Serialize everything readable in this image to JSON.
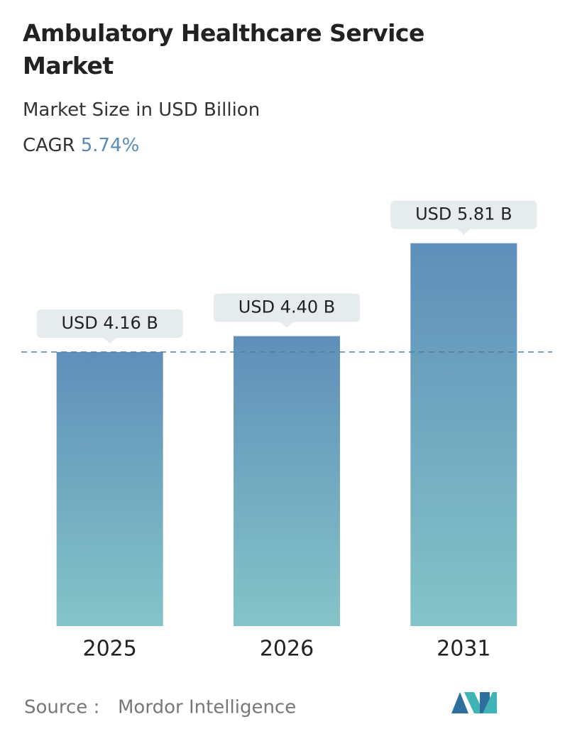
{
  "chart_data": {
    "type": "bar",
    "title": "Ambulatory Healthcare Service Market",
    "subtitle": "Market Size in USD Billion",
    "cagr_label": "CAGR",
    "cagr": "5.74%",
    "categories": [
      "2025",
      "2026",
      "2031"
    ],
    "values": [
      4.16,
      4.4,
      5.81
    ],
    "value_labels": [
      "USD 4.16 B",
      "USD 4.40 B",
      "USD 5.81 B"
    ],
    "colors": [
      "#5f8fb9",
      "#84c4c8"
    ],
    "ylim": [
      0,
      6
    ],
    "source_label": "Source :",
    "source": "Mordor Intelligence"
  }
}
